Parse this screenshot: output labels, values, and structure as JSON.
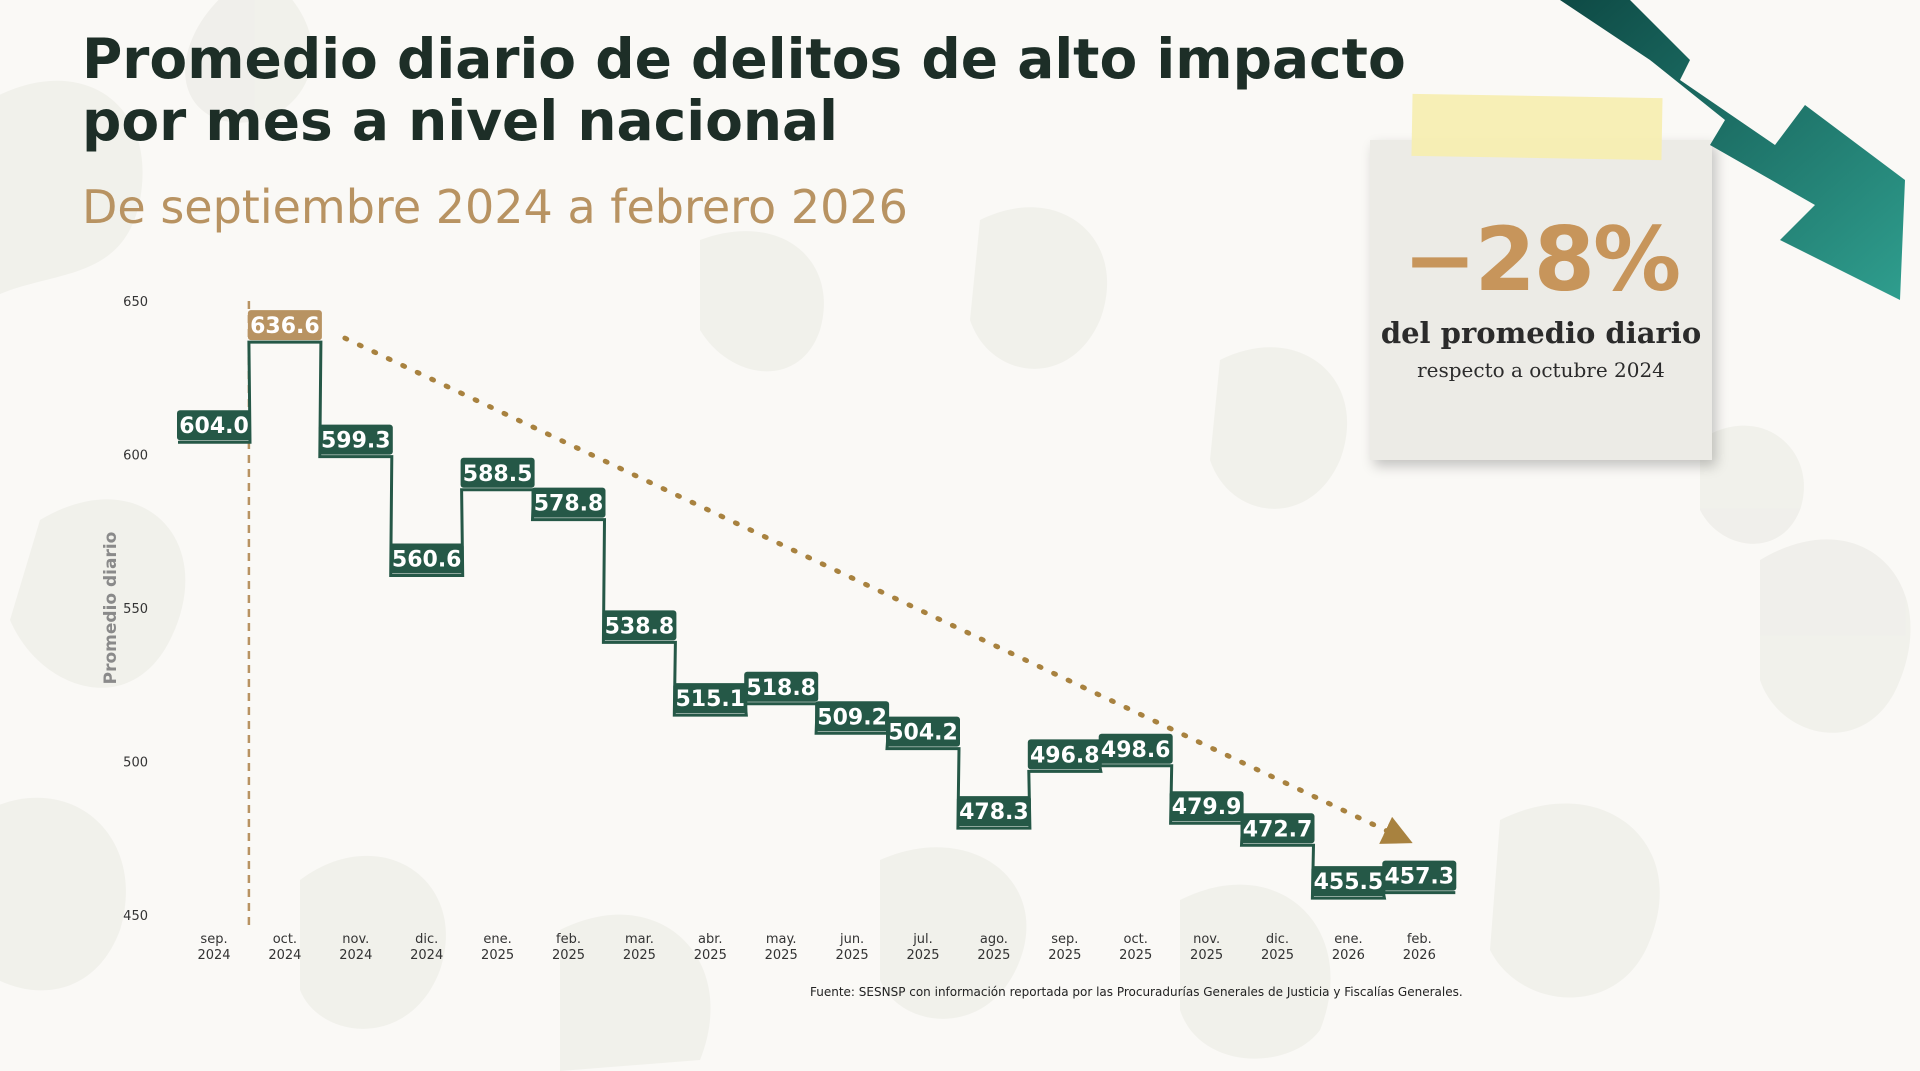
{
  "header": {
    "title_line1": "Promedio diario de delitos de alto impacto",
    "title_line2": "por mes a nivel nacional",
    "subtitle": "De septiembre 2024 a febrero 2026"
  },
  "highlight": {
    "value": "−28%",
    "line1": "del promedio diario",
    "line2": "respecto a octubre 2024"
  },
  "source": "Fuente: SESNSP con información reportada por las Procuradurías Generales de Justicia y Fiscalías Generales.",
  "colors": {
    "series": "#255847",
    "highlight": "#b89362",
    "trend": "#a8823f"
  },
  "chart_data": {
    "type": "step",
    "title": "Promedio diario de delitos de alto impacto por mes a nivel nacional",
    "ylabel": "Promedio diario",
    "xlabel": "",
    "ylim": [
      450,
      650
    ],
    "yticks": [
      450,
      500,
      550,
      600,
      650
    ],
    "categories": [
      [
        "sep.",
        "2024"
      ],
      [
        "oct.",
        "2024"
      ],
      [
        "nov.",
        "2024"
      ],
      [
        "dic.",
        "2024"
      ],
      [
        "ene.",
        "2025"
      ],
      [
        "feb.",
        "2025"
      ],
      [
        "mar.",
        "2025"
      ],
      [
        "abr.",
        "2025"
      ],
      [
        "may.",
        "2025"
      ],
      [
        "jun.",
        "2025"
      ],
      [
        "jul.",
        "2025"
      ],
      [
        "ago.",
        "2025"
      ],
      [
        "sep.",
        "2025"
      ],
      [
        "oct.",
        "2025"
      ],
      [
        "nov.",
        "2025"
      ],
      [
        "dic.",
        "2025"
      ],
      [
        "ene.",
        "2026"
      ],
      [
        "feb.",
        "2026"
      ]
    ],
    "values": [
      604.0,
      636.6,
      599.3,
      560.6,
      588.5,
      578.8,
      538.8,
      515.1,
      518.8,
      509.2,
      504.2,
      478.3,
      496.8,
      498.6,
      479.9,
      472.7,
      455.5,
      457.3
    ],
    "labels": [
      "604.0",
      "636.6",
      "599.3",
      "560.6",
      "588.5",
      "578.8",
      "538.8",
      "515.1",
      "518.8",
      "509.2",
      "504.2",
      "478.3",
      "496.8",
      "498.6",
      "479.9",
      "472.7",
      "455.5",
      "457.3"
    ],
    "highlight_index": 1,
    "reference_line": "oct. 2024",
    "trend_arrow": {
      "from": "oct. 2024",
      "to": "feb. 2026"
    }
  }
}
